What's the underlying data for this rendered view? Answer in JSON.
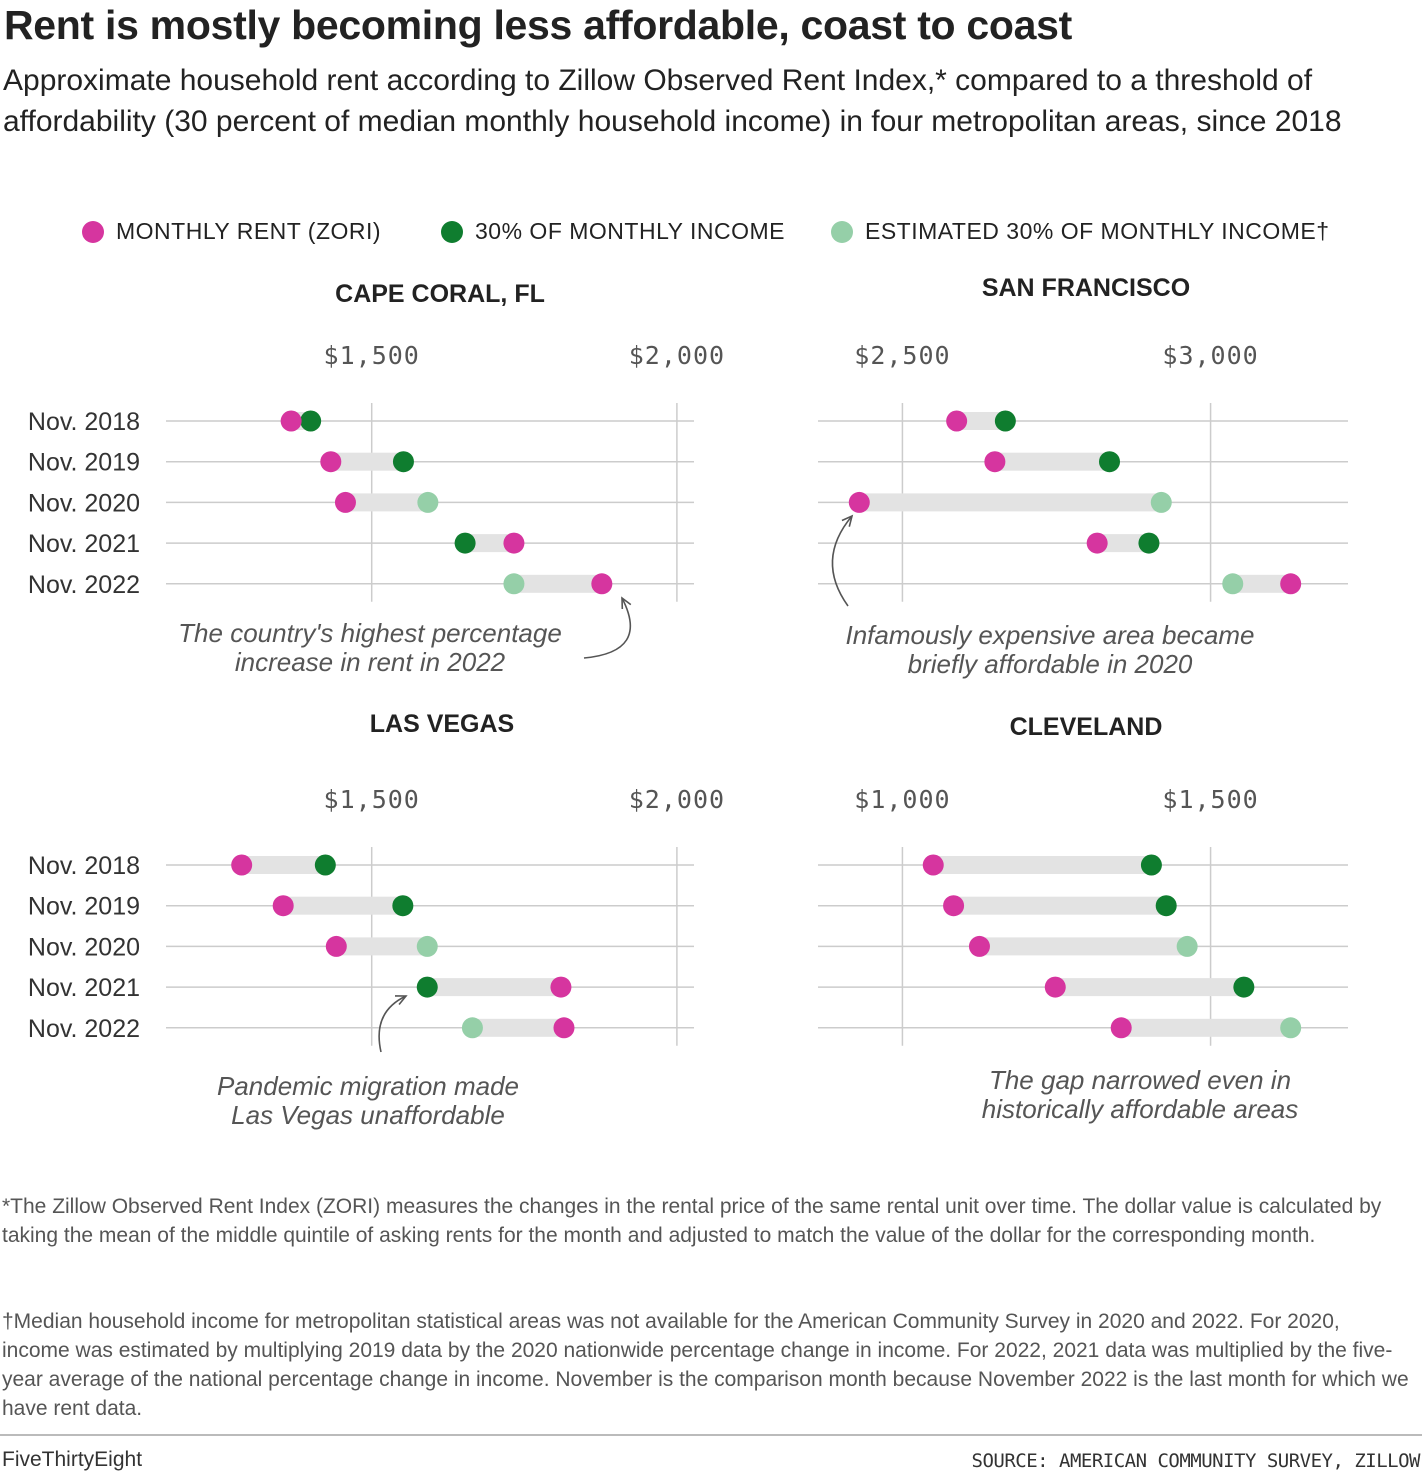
{
  "title": "Rent is mostly becoming less affordable, coast to coast",
  "subtitle": "Approximate household rent according to Zillow Observed Rent Index,* compared to a threshold of affordability (30 percent of median monthly household income) in four metropolitan areas, since 2018",
  "legend": {
    "rent": "MONTHLY RENT (ZORI)",
    "income": "30% OF MONTHLY INCOME",
    "estimated": "ESTIMATED 30% OF MONTHLY INCOME†"
  },
  "colors": {
    "rent": "#d6359f",
    "income": "#0f7d2f",
    "estimated": "#95cfa8",
    "gap_bar": "#e3e3e3",
    "grid": "#cccccc"
  },
  "chart_data": [
    {
      "type": "dumbbell",
      "title": "CAPE CORAL, FL",
      "categories": [
        "Nov. 2018",
        "Nov. 2019",
        "Nov. 2020",
        "Nov. 2021",
        "Nov. 2022"
      ],
      "x_tick_labels": [
        "$1,500",
        "$2,000"
      ],
      "x_ticks": [
        1500,
        2000
      ],
      "xlim": [
        1163,
        2028
      ],
      "series": [
        {
          "name": "MONTHLY RENT (ZORI)",
          "values": [
            1368,
            1433,
            1457,
            1733,
            1877
          ]
        },
        {
          "name": "30% OF MONTHLY INCOME",
          "values": [
            1400,
            1552,
            null,
            1653,
            null
          ]
        },
        {
          "name": "ESTIMATED 30% OF MONTHLY INCOME†",
          "values": [
            null,
            null,
            1592,
            null,
            1733
          ]
        }
      ],
      "annotation": "The country's highest percentage increase in rent in 2022"
    },
    {
      "type": "dumbbell",
      "title": "SAN FRANCISCO",
      "categories": [
        "Nov. 2018",
        "Nov. 2019",
        "Nov. 2020",
        "Nov. 2021",
        "Nov. 2022"
      ],
      "x_tick_labels": [
        "$2,500",
        "$3,000"
      ],
      "x_ticks": [
        2500,
        3000
      ],
      "xlim": [
        2363,
        3223
      ],
      "series": [
        {
          "name": "MONTHLY RENT (ZORI)",
          "values": [
            2588,
            2650,
            2430,
            2816,
            3130
          ]
        },
        {
          "name": "30% OF MONTHLY INCOME",
          "values": [
            2667,
            2836,
            null,
            2900,
            null
          ]
        },
        {
          "name": "ESTIMATED 30% OF MONTHLY INCOME†",
          "values": [
            null,
            null,
            2920,
            null,
            3036
          ]
        }
      ],
      "annotation": "Infamously expensive area became briefly affordable in 2020"
    },
    {
      "type": "dumbbell",
      "title": "LAS VEGAS",
      "categories": [
        "Nov. 2018",
        "Nov. 2019",
        "Nov. 2020",
        "Nov. 2021",
        "Nov. 2022"
      ],
      "x_tick_labels": [
        "$1,500",
        "$2,000"
      ],
      "x_ticks": [
        1500,
        2000
      ],
      "xlim": [
        1163,
        2028
      ],
      "series": [
        {
          "name": "MONTHLY RENT (ZORI)",
          "values": [
            1287,
            1355,
            1442,
            1810,
            1815
          ]
        },
        {
          "name": "30% OF MONTHLY INCOME",
          "values": [
            1424,
            1551,
            null,
            1591,
            null
          ]
        },
        {
          "name": "ESTIMATED 30% OF MONTHLY INCOME†",
          "values": [
            null,
            null,
            1591,
            null,
            1665
          ]
        }
      ],
      "annotation": "Pandemic migration made Las Vegas unaffordable"
    },
    {
      "type": "dumbbell",
      "title": "CLEVELAND",
      "categories": [
        "Nov. 2018",
        "Nov. 2019",
        "Nov. 2020",
        "Nov. 2021",
        "Nov. 2022"
      ],
      "x_tick_labels": [
        "$1,000",
        "$1,500"
      ],
      "x_ticks": [
        1000,
        1500
      ],
      "xlim": [
        863,
        1723
      ],
      "series": [
        {
          "name": "MONTHLY RENT (ZORI)",
          "values": [
            1050,
            1083,
            1125,
            1248,
            1355
          ]
        },
        {
          "name": "30% OF MONTHLY INCOME",
          "values": [
            1404,
            1428,
            null,
            1554,
            null
          ]
        },
        {
          "name": "ESTIMATED 30% OF MONTHLY INCOME†",
          "values": [
            null,
            null,
            1462,
            null,
            1630
          ]
        }
      ],
      "annotation": "The gap narrowed even in historically affordable areas"
    }
  ],
  "footnotes": {
    "zori": "*The Zillow Observed Rent Index (ZORI) measures the changes in the rental price of the same rental unit over time. The dollar value is calculated by taking the mean of the middle quintile of asking rents for the month and adjusted to match the value of the dollar for the corresponding month.",
    "income": "†Median household income for metropolitan statistical areas was not available for the American Community Survey in 2020 and 2022. For 2020, income was estimated by multiplying 2019 data by the 2020 nationwide percentage change in income. For 2022, 2021 data was multiplied by the five-year average of the national percentage change in income. November is the comparison month because November 2022 is the last month for which we have rent data."
  },
  "brand": "FiveThirtyEight",
  "source": "SOURCE: AMERICAN COMMUNITY SURVEY, ZILLOW"
}
